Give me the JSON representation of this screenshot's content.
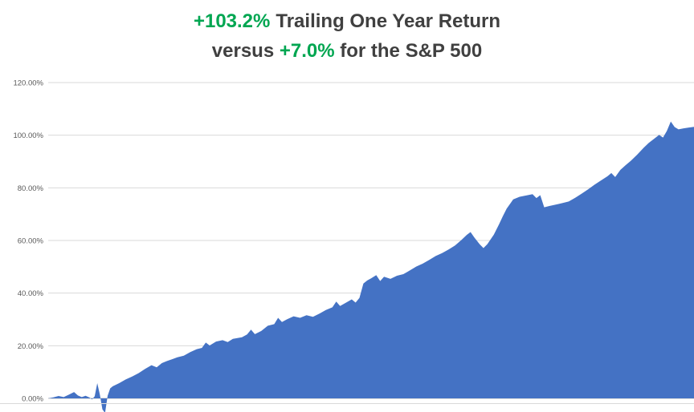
{
  "title": {
    "line1_highlight": "+103.2%",
    "line1_rest": "Trailing One Year Return",
    "line2_prefix": "versus ",
    "line2_highlight": "+7.0%",
    "line2_rest": " for the S&P 500"
  },
  "colors": {
    "highlight_green": "#00A651",
    "title_text": "#404040",
    "area_fill": "#4472C4",
    "gridline": "#D9D9D9",
    "axis_line": "#BFBFBF",
    "axis_text": "#595959",
    "background": "#FFFFFF"
  },
  "chart_data": {
    "type": "area",
    "title": "+103.2% Trailing One Year Return versus +7.0% for the S&P 500",
    "xlabel": "",
    "ylabel": "",
    "ylim": [
      0,
      120
    ],
    "yticks": [
      0,
      20,
      40,
      60,
      80,
      100,
      120
    ],
    "ytick_labels": [
      "0.00%",
      "20.00%",
      "40.00%",
      "60.00%",
      "80.00%",
      "100.00%",
      "120.00%"
    ],
    "xtick_labels": [],
    "grid": true,
    "legend": "none",
    "final_value_pct": 103.2,
    "benchmark": {
      "name": "S&P 500",
      "value_pct": 7.0
    },
    "series": [
      {
        "name": "Trailing One Year Return (%)",
        "x_unit": "fraction_of_period",
        "points": [
          [
            0,
            0
          ],
          [
            0.008,
            0.4
          ],
          [
            0.016,
            0.9
          ],
          [
            0.024,
            0.5
          ],
          [
            0.032,
            1.4
          ],
          [
            0.04,
            2.4
          ],
          [
            0.046,
            1.1
          ],
          [
            0.052,
            0.5
          ],
          [
            0.058,
            1.0
          ],
          [
            0.064,
            0.3
          ],
          [
            0.068,
            -0.4
          ],
          [
            0.072,
            0.8
          ],
          [
            0.076,
            5.8
          ],
          [
            0.08,
            1.5
          ],
          [
            0.084,
            -4.2
          ],
          [
            0.088,
            -5.5
          ],
          [
            0.092,
            1.0
          ],
          [
            0.096,
            3.8
          ],
          [
            0.1,
            4.6
          ],
          [
            0.11,
            5.8
          ],
          [
            0.12,
            7.2
          ],
          [
            0.13,
            8.3
          ],
          [
            0.14,
            9.6
          ],
          [
            0.15,
            11.2
          ],
          [
            0.16,
            12.6
          ],
          [
            0.168,
            11.8
          ],
          [
            0.176,
            13.4
          ],
          [
            0.184,
            14.2
          ],
          [
            0.192,
            14.9
          ],
          [
            0.2,
            15.6
          ],
          [
            0.21,
            16.2
          ],
          [
            0.22,
            17.6
          ],
          [
            0.23,
            18.7
          ],
          [
            0.238,
            19.2
          ],
          [
            0.244,
            21.2
          ],
          [
            0.25,
            20.1
          ],
          [
            0.26,
            21.6
          ],
          [
            0.27,
            22.1
          ],
          [
            0.278,
            21.4
          ],
          [
            0.286,
            22.6
          ],
          [
            0.3,
            23.2
          ],
          [
            0.308,
            24.3
          ],
          [
            0.314,
            26.1
          ],
          [
            0.32,
            24.4
          ],
          [
            0.33,
            25.6
          ],
          [
            0.34,
            27.6
          ],
          [
            0.35,
            28.2
          ],
          [
            0.356,
            30.6
          ],
          [
            0.362,
            29.0
          ],
          [
            0.37,
            30.1
          ],
          [
            0.38,
            31.2
          ],
          [
            0.39,
            30.6
          ],
          [
            0.4,
            31.6
          ],
          [
            0.41,
            31.0
          ],
          [
            0.42,
            32.2
          ],
          [
            0.43,
            33.6
          ],
          [
            0.44,
            34.6
          ],
          [
            0.446,
            36.8
          ],
          [
            0.452,
            35.1
          ],
          [
            0.46,
            36.2
          ],
          [
            0.47,
            37.6
          ],
          [
            0.476,
            36.4
          ],
          [
            0.482,
            38.2
          ],
          [
            0.488,
            43.6
          ],
          [
            0.494,
            44.8
          ],
          [
            0.5,
            45.6
          ],
          [
            0.508,
            46.8
          ],
          [
            0.514,
            44.6
          ],
          [
            0.52,
            46.2
          ],
          [
            0.53,
            45.4
          ],
          [
            0.54,
            46.6
          ],
          [
            0.55,
            47.2
          ],
          [
            0.56,
            48.6
          ],
          [
            0.57,
            50.1
          ],
          [
            0.58,
            51.2
          ],
          [
            0.59,
            52.6
          ],
          [
            0.6,
            54.1
          ],
          [
            0.61,
            55.2
          ],
          [
            0.62,
            56.6
          ],
          [
            0.63,
            58.1
          ],
          [
            0.64,
            60.2
          ],
          [
            0.648,
            62.1
          ],
          [
            0.654,
            63.2
          ],
          [
            0.66,
            61.1
          ],
          [
            0.668,
            58.6
          ],
          [
            0.674,
            57.1
          ],
          [
            0.68,
            58.6
          ],
          [
            0.69,
            62.2
          ],
          [
            0.698,
            66.1
          ],
          [
            0.704,
            69.2
          ],
          [
            0.71,
            72.1
          ],
          [
            0.72,
            75.6
          ],
          [
            0.73,
            76.6
          ],
          [
            0.74,
            77.1
          ],
          [
            0.75,
            77.6
          ],
          [
            0.756,
            76.1
          ],
          [
            0.762,
            77.2
          ],
          [
            0.768,
            72.6
          ],
          [
            0.776,
            73.1
          ],
          [
            0.786,
            73.6
          ],
          [
            0.796,
            74.2
          ],
          [
            0.806,
            74.8
          ],
          [
            0.816,
            76.2
          ],
          [
            0.826,
            77.8
          ],
          [
            0.836,
            79.4
          ],
          [
            0.846,
            81.2
          ],
          [
            0.856,
            82.8
          ],
          [
            0.866,
            84.4
          ],
          [
            0.872,
            85.6
          ],
          [
            0.878,
            84.1
          ],
          [
            0.886,
            86.8
          ],
          [
            0.894,
            88.6
          ],
          [
            0.902,
            90.2
          ],
          [
            0.912,
            92.6
          ],
          [
            0.922,
            95.2
          ],
          [
            0.93,
            97.1
          ],
          [
            0.938,
            98.6
          ],
          [
            0.946,
            100.1
          ],
          [
            0.952,
            99.1
          ],
          [
            0.958,
            101.6
          ],
          [
            0.964,
            105.2
          ],
          [
            0.97,
            103.1
          ],
          [
            0.976,
            102.2
          ],
          [
            0.984,
            102.6
          ],
          [
            0.992,
            102.9
          ],
          [
            1,
            103.2
          ]
        ]
      }
    ]
  }
}
